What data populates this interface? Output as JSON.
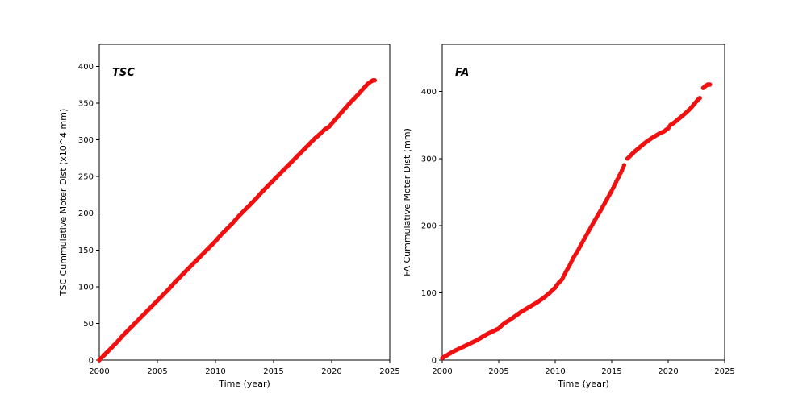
{
  "chart_data": [
    {
      "type": "scatter",
      "annotation": "TSC",
      "xlabel": "Time (year)",
      "ylabel": "TSC Cummulative Moter Dist (x10^4 mm)",
      "xlim": [
        2000,
        2025
      ],
      "ylim": [
        0,
        430
      ],
      "xticks": [
        2000,
        2005,
        2010,
        2015,
        2020,
        2025
      ],
      "yticks": [
        0,
        50,
        100,
        150,
        200,
        250,
        300,
        350,
        400
      ],
      "color": "#f01010",
      "legend": "none",
      "grid": false,
      "segments": [
        [
          [
            2000.0,
            0
          ],
          [
            2000.5,
            8
          ],
          [
            2001,
            16
          ],
          [
            2001.5,
            24
          ],
          [
            2002,
            33
          ],
          [
            2002.5,
            41
          ],
          [
            2003,
            49
          ],
          [
            2003.5,
            57
          ],
          [
            2004,
            65
          ],
          [
            2004.5,
            73
          ],
          [
            2005,
            81
          ],
          [
            2005.5,
            89
          ],
          [
            2006,
            97
          ],
          [
            2006.5,
            106
          ],
          [
            2007,
            114
          ],
          [
            2007.5,
            122
          ],
          [
            2008,
            130
          ],
          [
            2008.5,
            138
          ],
          [
            2009,
            146
          ],
          [
            2009.5,
            154
          ],
          [
            2010,
            162
          ],
          [
            2010.5,
            171
          ],
          [
            2011,
            179
          ],
          [
            2011.5,
            187
          ],
          [
            2012,
            196
          ],
          [
            2012.5,
            204
          ],
          [
            2013,
            212
          ],
          [
            2013.5,
            220
          ],
          [
            2014,
            229
          ],
          [
            2014.5,
            237
          ],
          [
            2015,
            245
          ],
          [
            2015.5,
            253
          ],
          [
            2016,
            261
          ],
          [
            2016.5,
            269
          ],
          [
            2017,
            277
          ],
          [
            2017.5,
            285
          ],
          [
            2018,
            293
          ],
          [
            2018.5,
            301
          ],
          [
            2019,
            308
          ],
          [
            2019.4,
            314
          ],
          [
            2019.8,
            318
          ],
          [
            2020,
            322
          ],
          [
            2020.5,
            331
          ],
          [
            2021,
            340
          ],
          [
            2021.5,
            349
          ],
          [
            2022,
            357
          ],
          [
            2022.4,
            364
          ],
          [
            2022.8,
            371
          ],
          [
            2023.1,
            376
          ],
          [
            2023.35,
            379
          ],
          [
            2023.55,
            381
          ],
          [
            2023.7,
            381
          ]
        ]
      ]
    },
    {
      "type": "scatter",
      "annotation": "FA",
      "xlabel": "Time (year)",
      "ylabel": "FA Cummulative Moter Dist (mm)",
      "xlim": [
        2000,
        2025
      ],
      "ylim": [
        0,
        470
      ],
      "xticks": [
        2000,
        2005,
        2010,
        2015,
        2020,
        2025
      ],
      "yticks": [
        0,
        100,
        200,
        300,
        400
      ],
      "color": "#f01010",
      "legend": "none",
      "grid": false,
      "segments": [
        [
          [
            2000.0,
            3
          ],
          [
            2000.5,
            8
          ],
          [
            2001,
            13
          ],
          [
            2001.5,
            17
          ],
          [
            2002,
            21
          ],
          [
            2002.5,
            25
          ],
          [
            2003,
            29
          ],
          [
            2003.5,
            34
          ],
          [
            2004,
            39
          ],
          [
            2004.5,
            43
          ],
          [
            2005,
            47
          ],
          [
            2005.3,
            52
          ],
          [
            2005.6,
            56
          ],
          [
            2006,
            60
          ],
          [
            2006.5,
            66
          ],
          [
            2007,
            72
          ],
          [
            2007.5,
            77
          ],
          [
            2008,
            82
          ],
          [
            2008.5,
            87
          ],
          [
            2009,
            93
          ],
          [
            2009.5,
            100
          ],
          [
            2010,
            108
          ],
          [
            2010.3,
            115
          ],
          [
            2010.6,
            120
          ],
          [
            2011,
            133
          ],
          [
            2011.3,
            142
          ],
          [
            2011.6,
            152
          ],
          [
            2012,
            163
          ],
          [
            2012.5,
            178
          ],
          [
            2013,
            193
          ],
          [
            2013.5,
            208
          ],
          [
            2014,
            222
          ],
          [
            2014.5,
            237
          ],
          [
            2015,
            252
          ],
          [
            2015.3,
            262
          ],
          [
            2015.6,
            272
          ],
          [
            2015.9,
            282
          ],
          [
            2016.1,
            290
          ]
        ],
        [
          [
            2016.4,
            300
          ],
          [
            2016.7,
            305
          ],
          [
            2017,
            310
          ],
          [
            2017.5,
            317
          ],
          [
            2018,
            324
          ],
          [
            2018.5,
            330
          ],
          [
            2019,
            335
          ],
          [
            2019.3,
            338
          ],
          [
            2019.6,
            340
          ],
          [
            2020,
            345
          ],
          [
            2020.2,
            350
          ],
          [
            2020.5,
            353
          ],
          [
            2021,
            360
          ],
          [
            2021.5,
            367
          ],
          [
            2022,
            375
          ],
          [
            2022.3,
            381
          ],
          [
            2022.6,
            387
          ],
          [
            2022.8,
            390
          ]
        ],
        [
          [
            2023.1,
            405
          ],
          [
            2023.3,
            408
          ],
          [
            2023.5,
            410
          ],
          [
            2023.7,
            410
          ]
        ]
      ]
    }
  ]
}
